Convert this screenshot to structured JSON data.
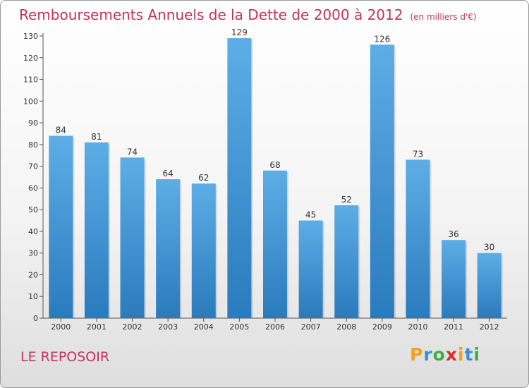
{
  "chart_data": {
    "type": "bar",
    "title": "Remboursements Annuels de la Dette de 2000 à 2012",
    "unit": "(en milliers d'€)",
    "categories": [
      "2000",
      "2001",
      "2002",
      "2003",
      "2004",
      "2005",
      "2006",
      "2007",
      "2008",
      "2009",
      "2010",
      "2011",
      "2012"
    ],
    "values": [
      84,
      81,
      74,
      64,
      62,
      129,
      68,
      45,
      52,
      126,
      73,
      36,
      30
    ],
    "ylim": [
      0,
      130
    ],
    "yticks": [
      0,
      10,
      20,
      30,
      40,
      50,
      60,
      70,
      80,
      90,
      100,
      110,
      120,
      130
    ],
    "grid": false,
    "colors": {
      "bar_light": "#5dade6",
      "bar_dark": "#2a7bbd",
      "title": "#c4335a"
    }
  },
  "place_name": "LE REPOSOIR",
  "logo": {
    "letters": [
      "P",
      "r",
      "o",
      "x",
      "i",
      "t",
      "i"
    ],
    "colors": [
      "#f2a11e",
      "#3a8fd6",
      "#3fae49",
      "#d9302c",
      "#f2a11e",
      "#3a8fd6",
      "#3fae49"
    ]
  }
}
